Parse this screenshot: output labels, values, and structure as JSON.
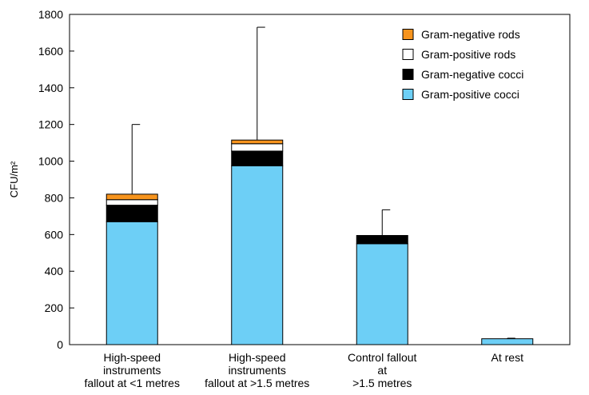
{
  "chart_data": {
    "type": "bar",
    "stacked": true,
    "title": "",
    "ylabel": "CFU/m²",
    "xlabel": "",
    "ylim": [
      0,
      1800
    ],
    "yticks": [
      "0",
      "200",
      "400",
      "600",
      "800",
      "1000",
      "1200",
      "1400",
      "1600",
      "1800"
    ],
    "grid": false,
    "legend_position": "top-right",
    "categories": [
      [
        "High-speed",
        "instruments",
        "fallout at <1 metres"
      ],
      [
        "High-speed",
        "instruments",
        "fallout at >1.5 metres"
      ],
      [
        "Control fallout",
        "at",
        ">1.5 metres"
      ],
      [
        "At rest"
      ]
    ],
    "series": [
      {
        "name": "Gram-positive cocci",
        "color": "#6dcff6",
        "values": [
          670,
          975,
          550,
          32
        ]
      },
      {
        "name": "Gram-negative cocci",
        "color": "#000000",
        "values": [
          90,
          80,
          45,
          0
        ]
      },
      {
        "name": "Gram-positive rods",
        "color": "#ffffff",
        "values": [
          30,
          40,
          0,
          0
        ]
      },
      {
        "name": "Gram-negative rods",
        "color": "#f7941d",
        "values": [
          30,
          20,
          0,
          0
        ]
      }
    ],
    "error_upper": [
      1200,
      1730,
      735,
      35
    ],
    "legend_order": [
      "Gram-negative rods",
      "Gram-positive rods",
      "Gram-negative cocci",
      "Gram-positive cocci"
    ]
  }
}
